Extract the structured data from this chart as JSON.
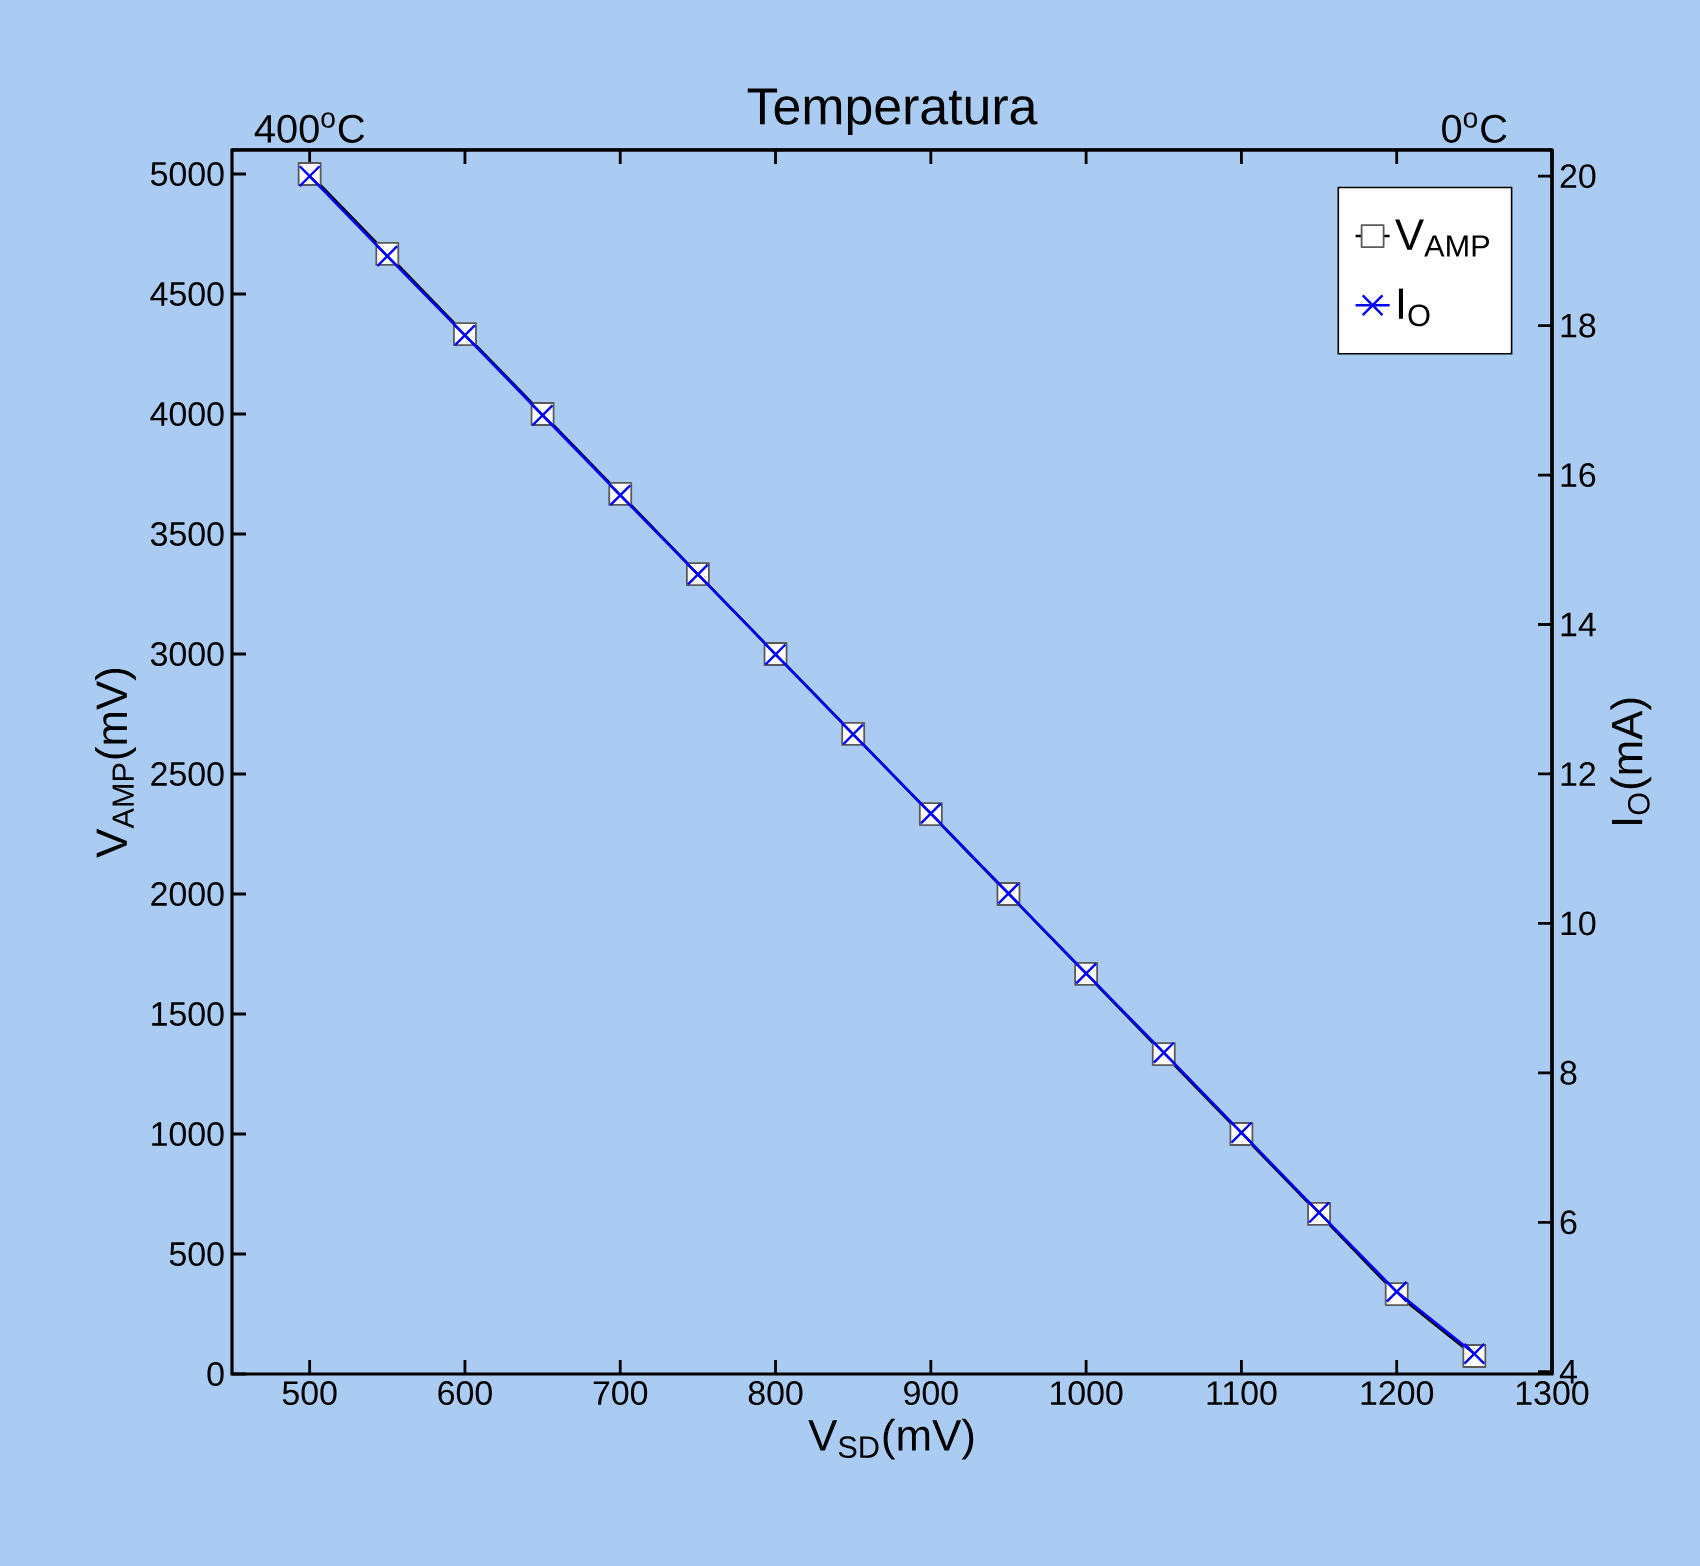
{
  "chart_data": {
    "type": "line",
    "title": "Temperatura",
    "xlabel": "V$_{SD}$(mV)",
    "ylabel": "V$_{AMP}$(mV)",
    "y2label": "I$_{O}$(mA)",
    "x": [
      500,
      550,
      600,
      650,
      700,
      750,
      800,
      850,
      900,
      950,
      1000,
      1050,
      1100,
      1150,
      1200,
      1250
    ],
    "series": [
      {
        "name": "V$_{AMP}$",
        "color": "#000000",
        "marker": "square",
        "values": [
          5000,
          4667,
          4333,
          4000,
          3667,
          3333,
          3000,
          2667,
          2333,
          2000,
          1667,
          1333,
          1000,
          667,
          333,
          75
        ]
      },
      {
        "name": "I$_{O}$",
        "color": "#0000ff",
        "marker": "cross",
        "axis": "y2",
        "values": [
          20,
          18.93,
          17.87,
          16.8,
          15.73,
          14.67,
          13.6,
          12.53,
          11.47,
          10.4,
          9.33,
          8.27,
          7.2,
          6.13,
          5.07,
          4.24
        ]
      }
    ],
    "xlim": [
      450,
      1300
    ],
    "xticks": [
      500,
      600,
      700,
      800,
      900,
      1000,
      1100,
      1200,
      1300
    ],
    "ylim": [
      0,
      5100
    ],
    "yticks": [
      0,
      500,
      1000,
      1500,
      2000,
      2500,
      3000,
      3500,
      4000,
      4500,
      5000
    ],
    "y2lim": [
      3.97,
      20.35
    ],
    "y2ticks": [
      4,
      6,
      8,
      10,
      12,
      14,
      16,
      18,
      20
    ],
    "x2lim": [
      426.7,
      -26.7
    ],
    "x2ticks": [
      {
        "value": 400,
        "label": "400$^{o}$C"
      },
      {
        "value": 0,
        "label": "0$^{o}$C"
      }
    ],
    "legend": "top right"
  }
}
